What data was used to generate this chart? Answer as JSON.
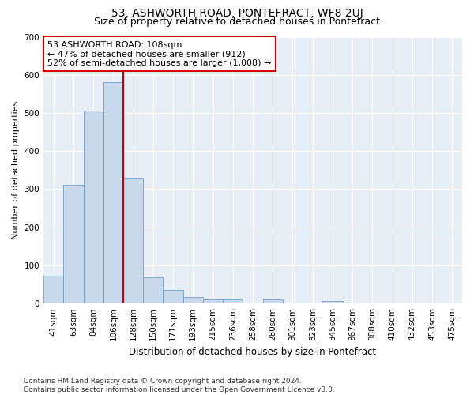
{
  "title": "53, ASHWORTH ROAD, PONTEFRACT, WF8 2UJ",
  "subtitle": "Size of property relative to detached houses in Pontefract",
  "xlabel": "Distribution of detached houses by size in Pontefract",
  "ylabel": "Number of detached properties",
  "categories": [
    "41sqm",
    "63sqm",
    "84sqm",
    "106sqm",
    "128sqm",
    "150sqm",
    "171sqm",
    "193sqm",
    "215sqm",
    "236sqm",
    "258sqm",
    "280sqm",
    "301sqm",
    "323sqm",
    "345sqm",
    "367sqm",
    "388sqm",
    "410sqm",
    "432sqm",
    "453sqm",
    "475sqm"
  ],
  "values": [
    72,
    312,
    507,
    580,
    330,
    68,
    36,
    16,
    11,
    11,
    0,
    10,
    0,
    0,
    6,
    0,
    0,
    0,
    0,
    0,
    0
  ],
  "bar_color": "#c9d9ec",
  "bar_edge_color": "#6fa0c8",
  "property_line_x": 3.5,
  "property_line_color": "#cc0000",
  "annotation_text": "53 ASHWORTH ROAD: 108sqm\n← 47% of detached houses are smaller (912)\n52% of semi-detached houses are larger (1,008) →",
  "annotation_box_color": "#ffffff",
  "annotation_box_edge": "#cc0000",
  "ylim": [
    0,
    700
  ],
  "yticks": [
    0,
    100,
    200,
    300,
    400,
    500,
    600,
    700
  ],
  "fig_bg_color": "#ffffff",
  "plot_bg_color": "#e8eef5",
  "grid_color": "#ffffff",
  "footer": "Contains HM Land Registry data © Crown copyright and database right 2024.\nContains public sector information licensed under the Open Government Licence v3.0.",
  "title_fontsize": 10,
  "subtitle_fontsize": 9,
  "xlabel_fontsize": 8.5,
  "ylabel_fontsize": 8,
  "tick_fontsize": 7.5,
  "footer_fontsize": 6.5
}
